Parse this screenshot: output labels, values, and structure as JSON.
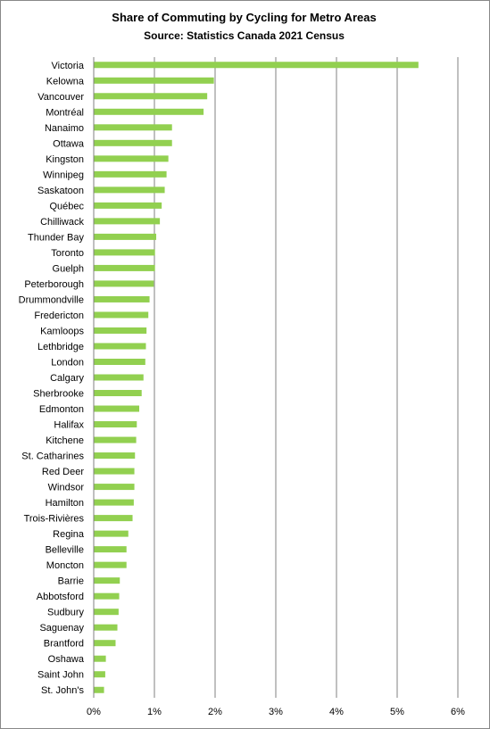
{
  "chart_data": {
    "type": "bar",
    "orientation": "horizontal",
    "title": "Share of Commuting by Cycling for Metro Areas",
    "subtitle": "Source: Statistics Canada 2021  Census",
    "xlabel": "",
    "ylabel": "",
    "xlim": [
      0,
      6
    ],
    "x_tick_labels": [
      "0%",
      "1%",
      "2%",
      "3%",
      "4%",
      "5%",
      "6%"
    ],
    "grid": "vertical",
    "legend": "none",
    "bar_color": "#92D050",
    "categories": [
      "Victoria",
      "Kelowna",
      "Vancouver",
      "Montréal",
      "Nanaimo",
      "Ottawa",
      "Kingston",
      "Winnipeg",
      "Saskatoon",
      "Québec",
      "Chilliwack",
      "Thunder Bay",
      "Toronto",
      "Guelph",
      "Peterborough",
      "Drummondville",
      "Fredericton",
      "Kamloops",
      "Lethbridge",
      "London",
      "Calgary",
      "Sherbrooke",
      "Edmonton",
      "Halifax",
      "Kitchene",
      "St. Catharines",
      "Red Deer",
      "Windsor",
      "Hamilton",
      "Trois-Rivières",
      "Regina",
      "Belleville",
      "Moncton",
      "Barrie",
      "Abbotsford",
      "Sudbury",
      "Saguenay",
      "Brantford",
      "Oshawa",
      "Saint John",
      "St. John's"
    ],
    "values": [
      5.35,
      1.98,
      1.87,
      1.81,
      1.29,
      1.29,
      1.23,
      1.2,
      1.17,
      1.12,
      1.09,
      1.03,
      1.01,
      1.01,
      0.99,
      0.92,
      0.9,
      0.87,
      0.86,
      0.85,
      0.82,
      0.79,
      0.75,
      0.71,
      0.7,
      0.68,
      0.67,
      0.67,
      0.66,
      0.64,
      0.57,
      0.54,
      0.54,
      0.43,
      0.42,
      0.41,
      0.39,
      0.36,
      0.2,
      0.19,
      0.17
    ]
  }
}
